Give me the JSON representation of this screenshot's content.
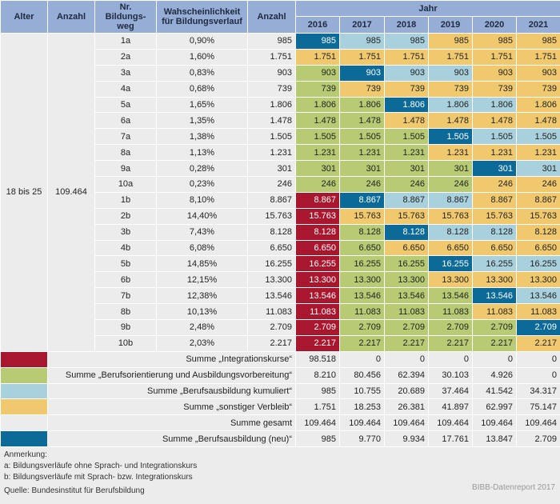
{
  "header": {
    "alter": "Alter",
    "anzahl": "Anzahl",
    "nr": "Nr. Bildungs-weg",
    "prob": "Wahscheinlichkeit für Bildungsverlauf",
    "anzahl2": "Anzahl",
    "jahr": "Jahr",
    "years": [
      "2016",
      "2017",
      "2018",
      "2019",
      "2020",
      "2021"
    ]
  },
  "group": {
    "alter": "18 bis 25",
    "anzahl": "109.464"
  },
  "colors": {
    "R": "#a8172e",
    "G": "#b6cb73",
    "L": "#a8d0dd",
    "Y": "#f0c96f",
    "D": "#0b6a98",
    "none": "#ececec"
  },
  "rows": [
    {
      "nr": "1a",
      "prob": "0,90%",
      "count": "985",
      "values": [
        "985",
        "985",
        "985",
        "985",
        "985",
        "985"
      ],
      "colors": "DLLYYY"
    },
    {
      "nr": "2a",
      "prob": "1,60%",
      "count": "1.751",
      "values": [
        "1.751",
        "1.751",
        "1.751",
        "1.751",
        "1.751",
        "1.751"
      ],
      "colors": "YYYYYY"
    },
    {
      "nr": "3a",
      "prob": "0,83%",
      "count": "903",
      "values": [
        "903",
        "903",
        "903",
        "903",
        "903",
        "903"
      ],
      "colors": "GDLLYY"
    },
    {
      "nr": "4a",
      "prob": "0,68%",
      "count": "739",
      "values": [
        "739",
        "739",
        "739",
        "739",
        "739",
        "739"
      ],
      "colors": "GYYYYY"
    },
    {
      "nr": "5a",
      "prob": "1,65%",
      "count": "1.806",
      "values": [
        "1.806",
        "1.806",
        "1.806",
        "1.806",
        "1.806",
        "1.806"
      ],
      "colors": "GGDLLY"
    },
    {
      "nr": "6a",
      "prob": "1,35%",
      "count": "1.478",
      "values": [
        "1.478",
        "1.478",
        "1.478",
        "1.478",
        "1.478",
        "1.478"
      ],
      "colors": "GGYYYY"
    },
    {
      "nr": "7a",
      "prob": "1,38%",
      "count": "1.505",
      "values": [
        "1.505",
        "1.505",
        "1.505",
        "1.505",
        "1.505",
        "1.505"
      ],
      "colors": "GGGDLL"
    },
    {
      "nr": "8a",
      "prob": "1,13%",
      "count": "1.231",
      "values": [
        "1.231",
        "1.231",
        "1.231",
        "1.231",
        "1.231",
        "1.231"
      ],
      "colors": "GGGYYY"
    },
    {
      "nr": "9a",
      "prob": "0,28%",
      "count": "301",
      "values": [
        "301",
        "301",
        "301",
        "301",
        "301",
        "301"
      ],
      "colors": "GGGGDL"
    },
    {
      "nr": "10a",
      "prob": "0,23%",
      "count": "246",
      "values": [
        "246",
        "246",
        "246",
        "246",
        "246",
        "246"
      ],
      "colors": "GGGGYY"
    },
    {
      "nr": "1b",
      "prob": "8,10%",
      "count": "8.867",
      "values": [
        "8.867",
        "8.867",
        "8.867",
        "8.867",
        "8.867",
        "8.867"
      ],
      "colors": "RDLLYY"
    },
    {
      "nr": "2b",
      "prob": "14,40%",
      "count": "15.763",
      "values": [
        "15.763",
        "15.763",
        "15.763",
        "15.763",
        "15.763",
        "15.763"
      ],
      "colors": "RYYYYY"
    },
    {
      "nr": "3b",
      "prob": "7,43%",
      "count": "8.128",
      "values": [
        "8.128",
        "8.128",
        "8.128",
        "8.128",
        "8.128",
        "8.128"
      ],
      "colors": "RGDLLY"
    },
    {
      "nr": "4b",
      "prob": "6,08%",
      "count": "6.650",
      "values": [
        "6.650",
        "6.650",
        "6.650",
        "6.650",
        "6.650",
        "6.650"
      ],
      "colors": "RGYYYY"
    },
    {
      "nr": "5b",
      "prob": "14,85%",
      "count": "16.255",
      "values": [
        "16.255",
        "16.255",
        "16.255",
        "16.255",
        "16.255",
        "16.255"
      ],
      "colors": "RGGDLL"
    },
    {
      "nr": "6b",
      "prob": "12,15%",
      "count": "13.300",
      "values": [
        "13.300",
        "13.300",
        "13.300",
        "13.300",
        "13.300",
        "13.300"
      ],
      "colors": "RGGYYY"
    },
    {
      "nr": "7b",
      "prob": "12,38%",
      "count": "13.546",
      "values": [
        "13.546",
        "13.546",
        "13.546",
        "13.546",
        "13.546",
        "13.546"
      ],
      "colors": "RGGGDL"
    },
    {
      "nr": "8b",
      "prob": "10,13%",
      "count": "11.083",
      "values": [
        "11.083",
        "11.083",
        "11.083",
        "11.083",
        "11.083",
        "11.083"
      ],
      "colors": "RGGGYY"
    },
    {
      "nr": "9b",
      "prob": "2,48%",
      "count": "2.709",
      "values": [
        "2.709",
        "2.709",
        "2.709",
        "2.709",
        "2.709",
        "2.709"
      ],
      "colors": "RGGGGD"
    },
    {
      "nr": "10b",
      "prob": "2,03%",
      "count": "2.217",
      "values": [
        "2.217",
        "2.217",
        "2.217",
        "2.217",
        "2.217",
        "2.217"
      ],
      "colors": "RGGGGY"
    }
  ],
  "sums": [
    {
      "label": "Summe „Integrationskurse“",
      "color": "R",
      "values": [
        "98.518",
        "0",
        "0",
        "0",
        "0",
        "0"
      ]
    },
    {
      "label": "Summe „Berufsorientierung und Ausbildungsvorbereitung“",
      "color": "G",
      "values": [
        "8.210",
        "80.456",
        "62.394",
        "30.103",
        "4.926",
        "0"
      ]
    },
    {
      "label": "Summe „Berufsausbildung kumuliert“",
      "color": "L",
      "values": [
        "985",
        "10.755",
        "20.689",
        "37.464",
        "41.542",
        "34.317"
      ]
    },
    {
      "label": "Summe „sonstiger Verbleib“",
      "color": "Y",
      "values": [
        "1.751",
        "18.253",
        "26.381",
        "41.897",
        "62.997",
        "75.147"
      ]
    },
    {
      "label": "Summe gesamt",
      "color": "none",
      "values": [
        "109.464",
        "109.464",
        "109.464",
        "109.464",
        "109.464",
        "109.464"
      ]
    },
    {
      "label": "Summe „Berufsausbildung (neu)“",
      "color": "D",
      "values": [
        "985",
        "9.770",
        "9.934",
        "17.761",
        "13.847",
        "2.709"
      ]
    }
  ],
  "notes": {
    "title": "Anmerkung:",
    "a": "a: Bildungsverläufe ohne Sprach- und Integrationskurs",
    "b": "b: Bildungsverläufe mit Sprach- bzw. Integrationskurs",
    "source": "Quelle: Bundesinstitut für Berufsbildung",
    "credit": "BIBB-Datenreport 2017"
  }
}
